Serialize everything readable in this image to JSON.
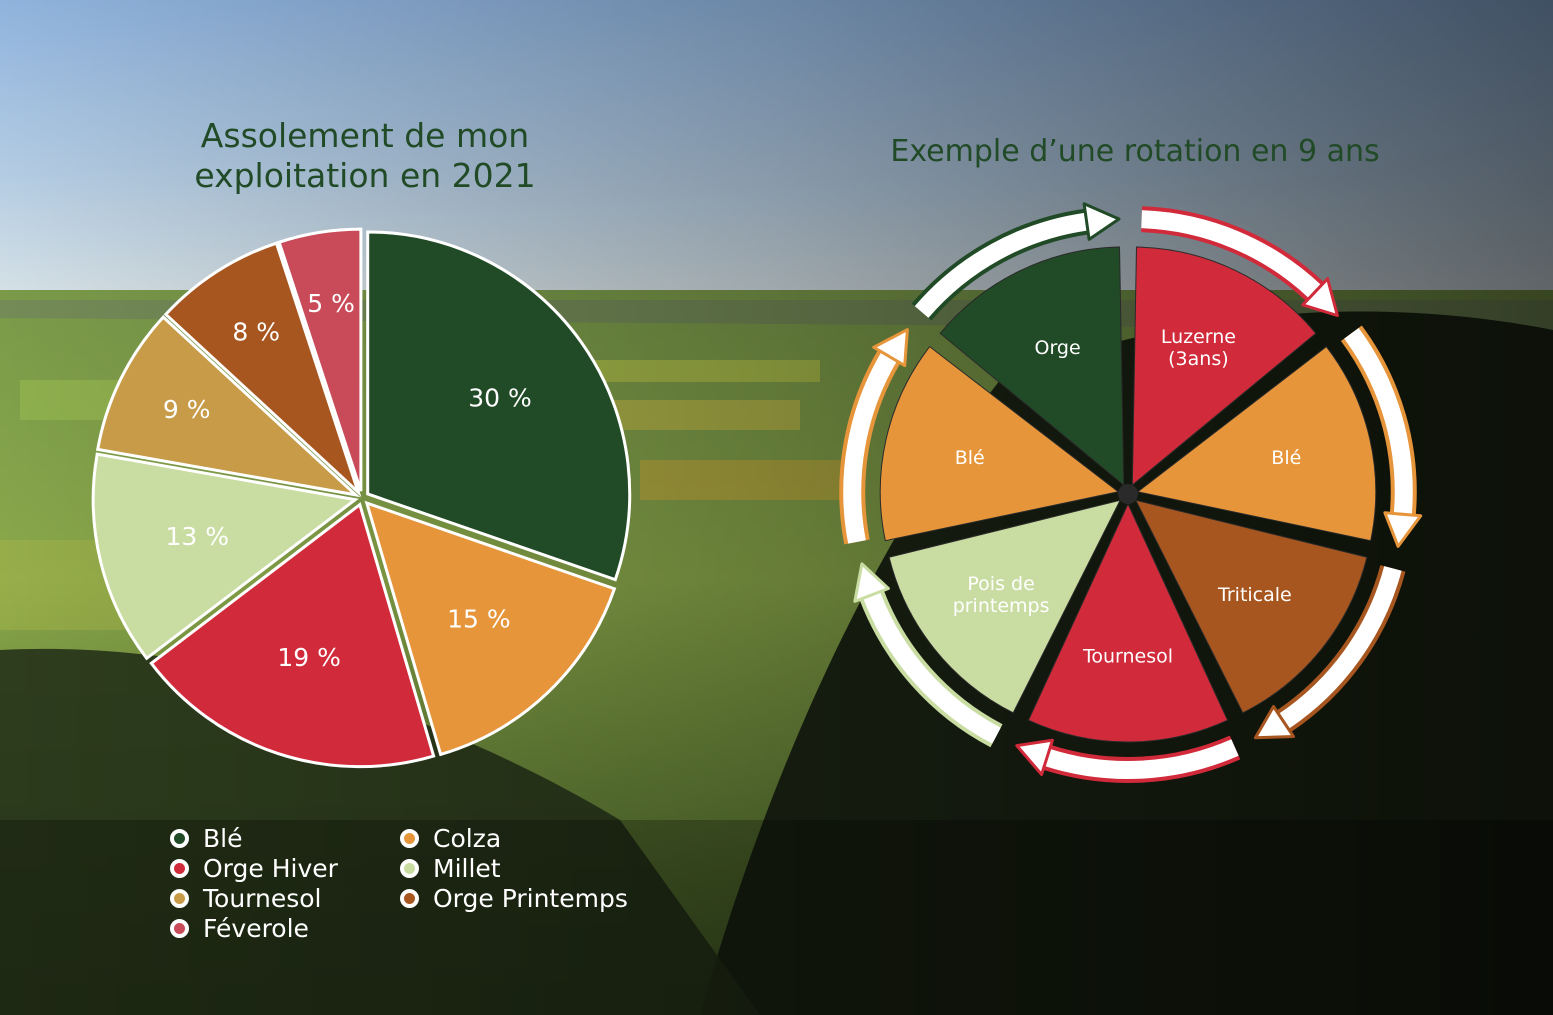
{
  "chart_data": [
    {
      "type": "pie",
      "title": "Assolement de mon exploitation en 2021",
      "slices": [
        {
          "label": "Blé",
          "value": 30,
          "display": "30 %",
          "color": "#214a27"
        },
        {
          "label": "Colza",
          "value": 15,
          "display": "15 %",
          "color": "#e6953a"
        },
        {
          "label": "Orge Hiver",
          "value": 19,
          "display": "19 %",
          "color": "#d12a3a"
        },
        {
          "label": "Millet",
          "value": 13,
          "display": "13 %",
          "color": "#c9dca2"
        },
        {
          "label": "Tournesol",
          "value": 9,
          "display": "9 %",
          "color": "#c79b47"
        },
        {
          "label": "Orge Printemps",
          "value": 8,
          "display": "8 %",
          "color": "#a8561f"
        },
        {
          "label": "Féverole",
          "value": 5,
          "display": "5 %",
          "color": "#c94b5a"
        }
      ],
      "legend": {
        "placement": "bottom",
        "columns": [
          [
            {
              "label": "Blé",
              "color": "#214a27"
            },
            {
              "label": "Orge Hiver",
              "color": "#d12a3a"
            },
            {
              "label": "Tournesol",
              "color": "#c79b47"
            },
            {
              "label": "Féverole",
              "color": "#c94b5a"
            }
          ],
          [
            {
              "label": "Colza",
              "color": "#e6953a"
            },
            {
              "label": "Millet",
              "color": "#c9dca2"
            },
            {
              "label": "Orge Printemps",
              "color": "#a8561f"
            }
          ]
        ]
      }
    },
    {
      "type": "cycle",
      "title": "Exemple d’une rotation en 9 ans",
      "steps": [
        {
          "label": "Luzerne\n(3ans)",
          "color": "#d12a3a"
        },
        {
          "label": "Blé",
          "color": "#e6953a"
        },
        {
          "label": "Triticale",
          "color": "#a8561f"
        },
        {
          "label": "Tournesol",
          "color": "#d12a3a"
        },
        {
          "label": "Pois de\nprintemps",
          "color": "#c9dca2"
        },
        {
          "label": "Blé",
          "color": "#e6953a"
        },
        {
          "label": "Orge",
          "color": "#214a27"
        }
      ]
    }
  ]
}
